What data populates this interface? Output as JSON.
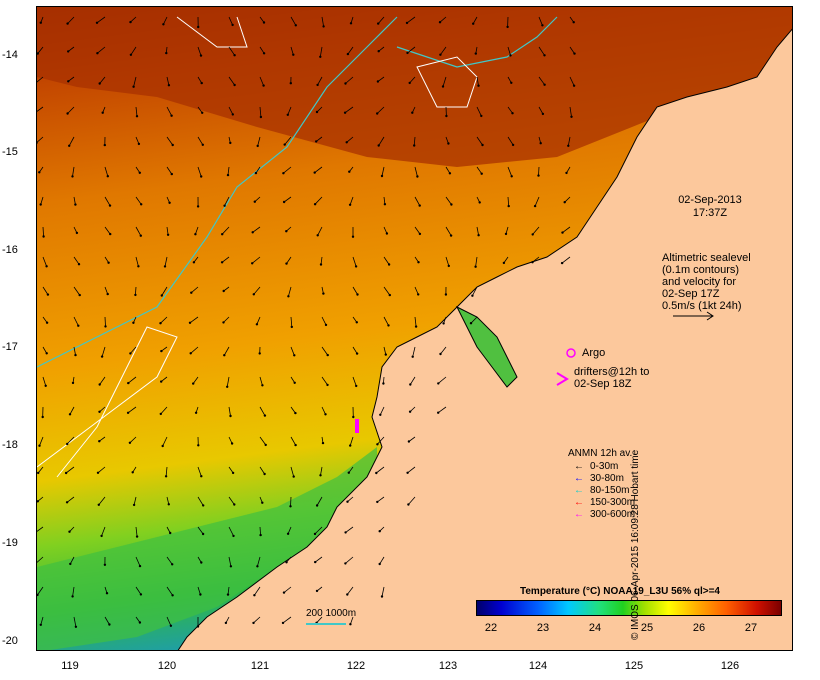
{
  "map": {
    "date": "02-Sep-2013",
    "time": "17:37Z",
    "altimetry_note": [
      "Altimetric sealevel",
      "(0.1m contours)",
      "and velocity for",
      "02-Sep 17Z",
      "0.5m/s (1kt 24h)"
    ],
    "argo_label": "Argo",
    "drifters_label": [
      "drifters@12h to",
      "02-Sep 18Z"
    ],
    "anmn_title": "ANMN 12h av.",
    "anmn_legend": [
      {
        "label": "0-30m",
        "color": "#000000"
      },
      {
        "label": "30-80m",
        "color": "#0000ff"
      },
      {
        "label": "80-150m",
        "color": "#00d0d0"
      },
      {
        "label": "150-300m",
        "color": "#ff0000"
      },
      {
        "label": "300-600m",
        "color": "#ff00ff"
      }
    ],
    "colorbar_title": "Temperature (°C) NOAA19_L3U 56% ql>=4",
    "colorbar_ticks": [
      "22",
      "23",
      "24",
      "25",
      "26",
      "27"
    ],
    "scale_label": "200  1000m",
    "credit": "© IMOS 06-Apr-2015 16:09:28 Hobart time",
    "x_ticks": [
      "119",
      "120",
      "121",
      "122",
      "123",
      "124",
      "125",
      "126"
    ],
    "y_ticks": [
      "-14",
      "-15",
      "-16",
      "-17",
      "-18",
      "-19",
      "-20"
    ],
    "colors": {
      "land": "#fcc89c",
      "warm": "#a83200",
      "mid": "#f09000",
      "cool": "#30c030",
      "contour": "#40c8c8"
    }
  }
}
